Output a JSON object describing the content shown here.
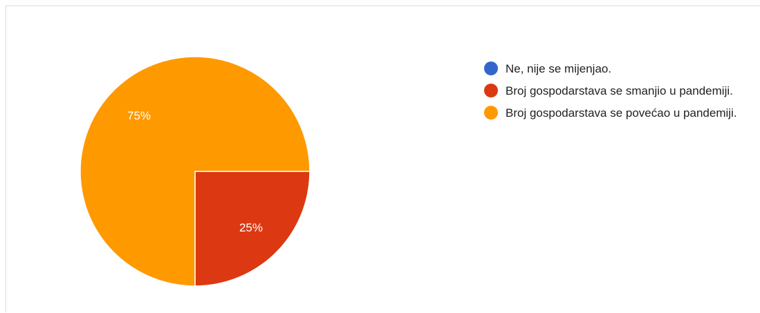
{
  "chart_data": {
    "type": "pie",
    "categories": [
      "Ne, nije se mijenjao.",
      "Broj gospodarstava se smanjio u pandemiji.",
      "Broj gospodarstava se povećao u pandemiji."
    ],
    "values": [
      0,
      25,
      75
    ],
    "unit": "%",
    "colors": [
      "#3366cc",
      "#dc3912",
      "#ff9900"
    ],
    "data_labels": [
      "",
      "25%",
      "75%"
    ],
    "legend_position": "right",
    "start_angle": "three o'clock",
    "direction": "clockwise"
  }
}
